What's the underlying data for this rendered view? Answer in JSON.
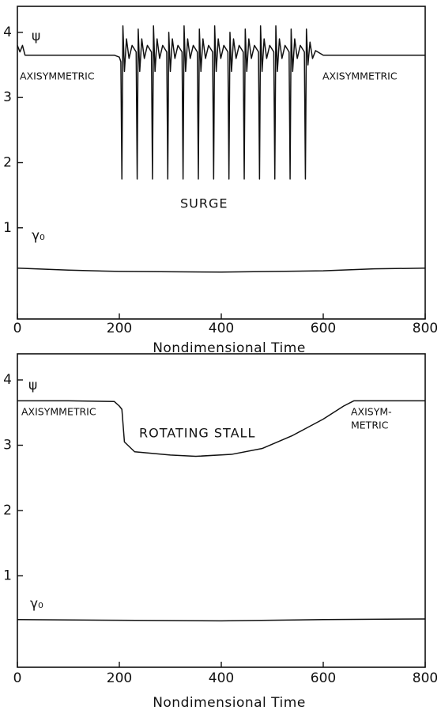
{
  "chart_data": [
    {
      "type": "line",
      "xlabel": "Nondimensional Time",
      "xlim": [
        0,
        800
      ],
      "ylim": [
        -0.4,
        4.4
      ],
      "xticks": [
        0,
        200,
        400,
        600,
        800
      ],
      "yticks": [
        1,
        2,
        3,
        4
      ],
      "annotations": [
        "ψ",
        "AXISYMMETRIC",
        "AXISYMMETRIC",
        "SURGE",
        "γ₀"
      ],
      "series": [
        {
          "color": "#111111",
          "x": [
            0,
            5,
            10,
            15,
            40,
            190,
            200,
            203,
            205,
            207,
            210,
            214,
            219,
            225,
            233,
            235,
            237,
            240,
            244,
            249,
            255,
            263,
            265,
            267,
            270,
            274,
            279,
            285,
            293,
            295,
            297,
            300,
            304,
            309,
            315,
            323,
            325,
            327,
            330,
            334,
            339,
            345,
            353,
            355,
            357,
            360,
            364,
            369,
            375,
            383,
            385,
            387,
            390,
            394,
            399,
            405,
            413,
            415,
            417,
            420,
            424,
            429,
            435,
            443,
            445,
            447,
            450,
            454,
            459,
            465,
            473,
            475,
            477,
            480,
            484,
            489,
            495,
            503,
            505,
            507,
            510,
            514,
            519,
            525,
            533,
            535,
            537,
            540,
            544,
            549,
            555,
            563,
            565,
            567,
            570,
            574,
            579,
            585,
            600,
            800
          ],
          "values": [
            3.8,
            3.7,
            3.8,
            3.65,
            3.65,
            3.65,
            3.62,
            3.55,
            1.75,
            4.1,
            3.4,
            3.9,
            3.6,
            3.8,
            3.7,
            1.75,
            4.05,
            3.4,
            3.9,
            3.6,
            3.8,
            3.7,
            1.75,
            4.1,
            3.4,
            3.9,
            3.6,
            3.8,
            3.7,
            1.75,
            4.0,
            3.4,
            3.9,
            3.6,
            3.8,
            3.7,
            1.75,
            4.1,
            3.4,
            3.9,
            3.6,
            3.8,
            3.7,
            1.75,
            4.05,
            3.4,
            3.9,
            3.6,
            3.8,
            3.7,
            1.75,
            4.1,
            3.4,
            3.9,
            3.6,
            3.8,
            3.7,
            1.75,
            4.0,
            3.4,
            3.9,
            3.6,
            3.8,
            3.7,
            1.75,
            4.05,
            3.4,
            3.9,
            3.6,
            3.8,
            3.7,
            1.75,
            4.1,
            3.4,
            3.9,
            3.6,
            3.8,
            3.7,
            1.75,
            4.1,
            3.4,
            3.9,
            3.6,
            3.8,
            3.7,
            1.75,
            4.05,
            3.4,
            3.9,
            3.6,
            3.8,
            3.7,
            1.75,
            4.05,
            3.5,
            3.85,
            3.6,
            3.72,
            3.65,
            3.65
          ]
        },
        {
          "color": "#111111",
          "x": [
            0,
            100,
            200,
            400,
            600,
            700,
            800
          ],
          "values": [
            0.38,
            0.35,
            0.33,
            0.32,
            0.34,
            0.37,
            0.38
          ]
        }
      ]
    },
    {
      "type": "line",
      "xlabel": "Nondimensional Time",
      "xlim": [
        0,
        800
      ],
      "ylim": [
        -0.4,
        4.4
      ],
      "xticks": [
        0,
        200,
        400,
        600,
        800
      ],
      "yticks": [
        1,
        2,
        3,
        4
      ],
      "annotations": [
        "ψ",
        "AXISYMMETRIC",
        "ROTATING STALL",
        "AXISYM-",
        "METRIC",
        "γ₀"
      ],
      "series": [
        {
          "color": "#111111",
          "x": [
            0,
            100,
            190,
            200,
            205,
            210,
            230,
            300,
            350,
            420,
            480,
            540,
            600,
            640,
            660,
            800
          ],
          "values": [
            3.68,
            3.68,
            3.67,
            3.6,
            3.55,
            3.05,
            2.9,
            2.85,
            2.83,
            2.86,
            2.95,
            3.15,
            3.4,
            3.6,
            3.68,
            3.68
          ]
        },
        {
          "color": "#111111",
          "x": [
            0,
            200,
            400,
            600,
            800
          ],
          "values": [
            0.33,
            0.32,
            0.31,
            0.33,
            0.34
          ]
        }
      ]
    }
  ]
}
